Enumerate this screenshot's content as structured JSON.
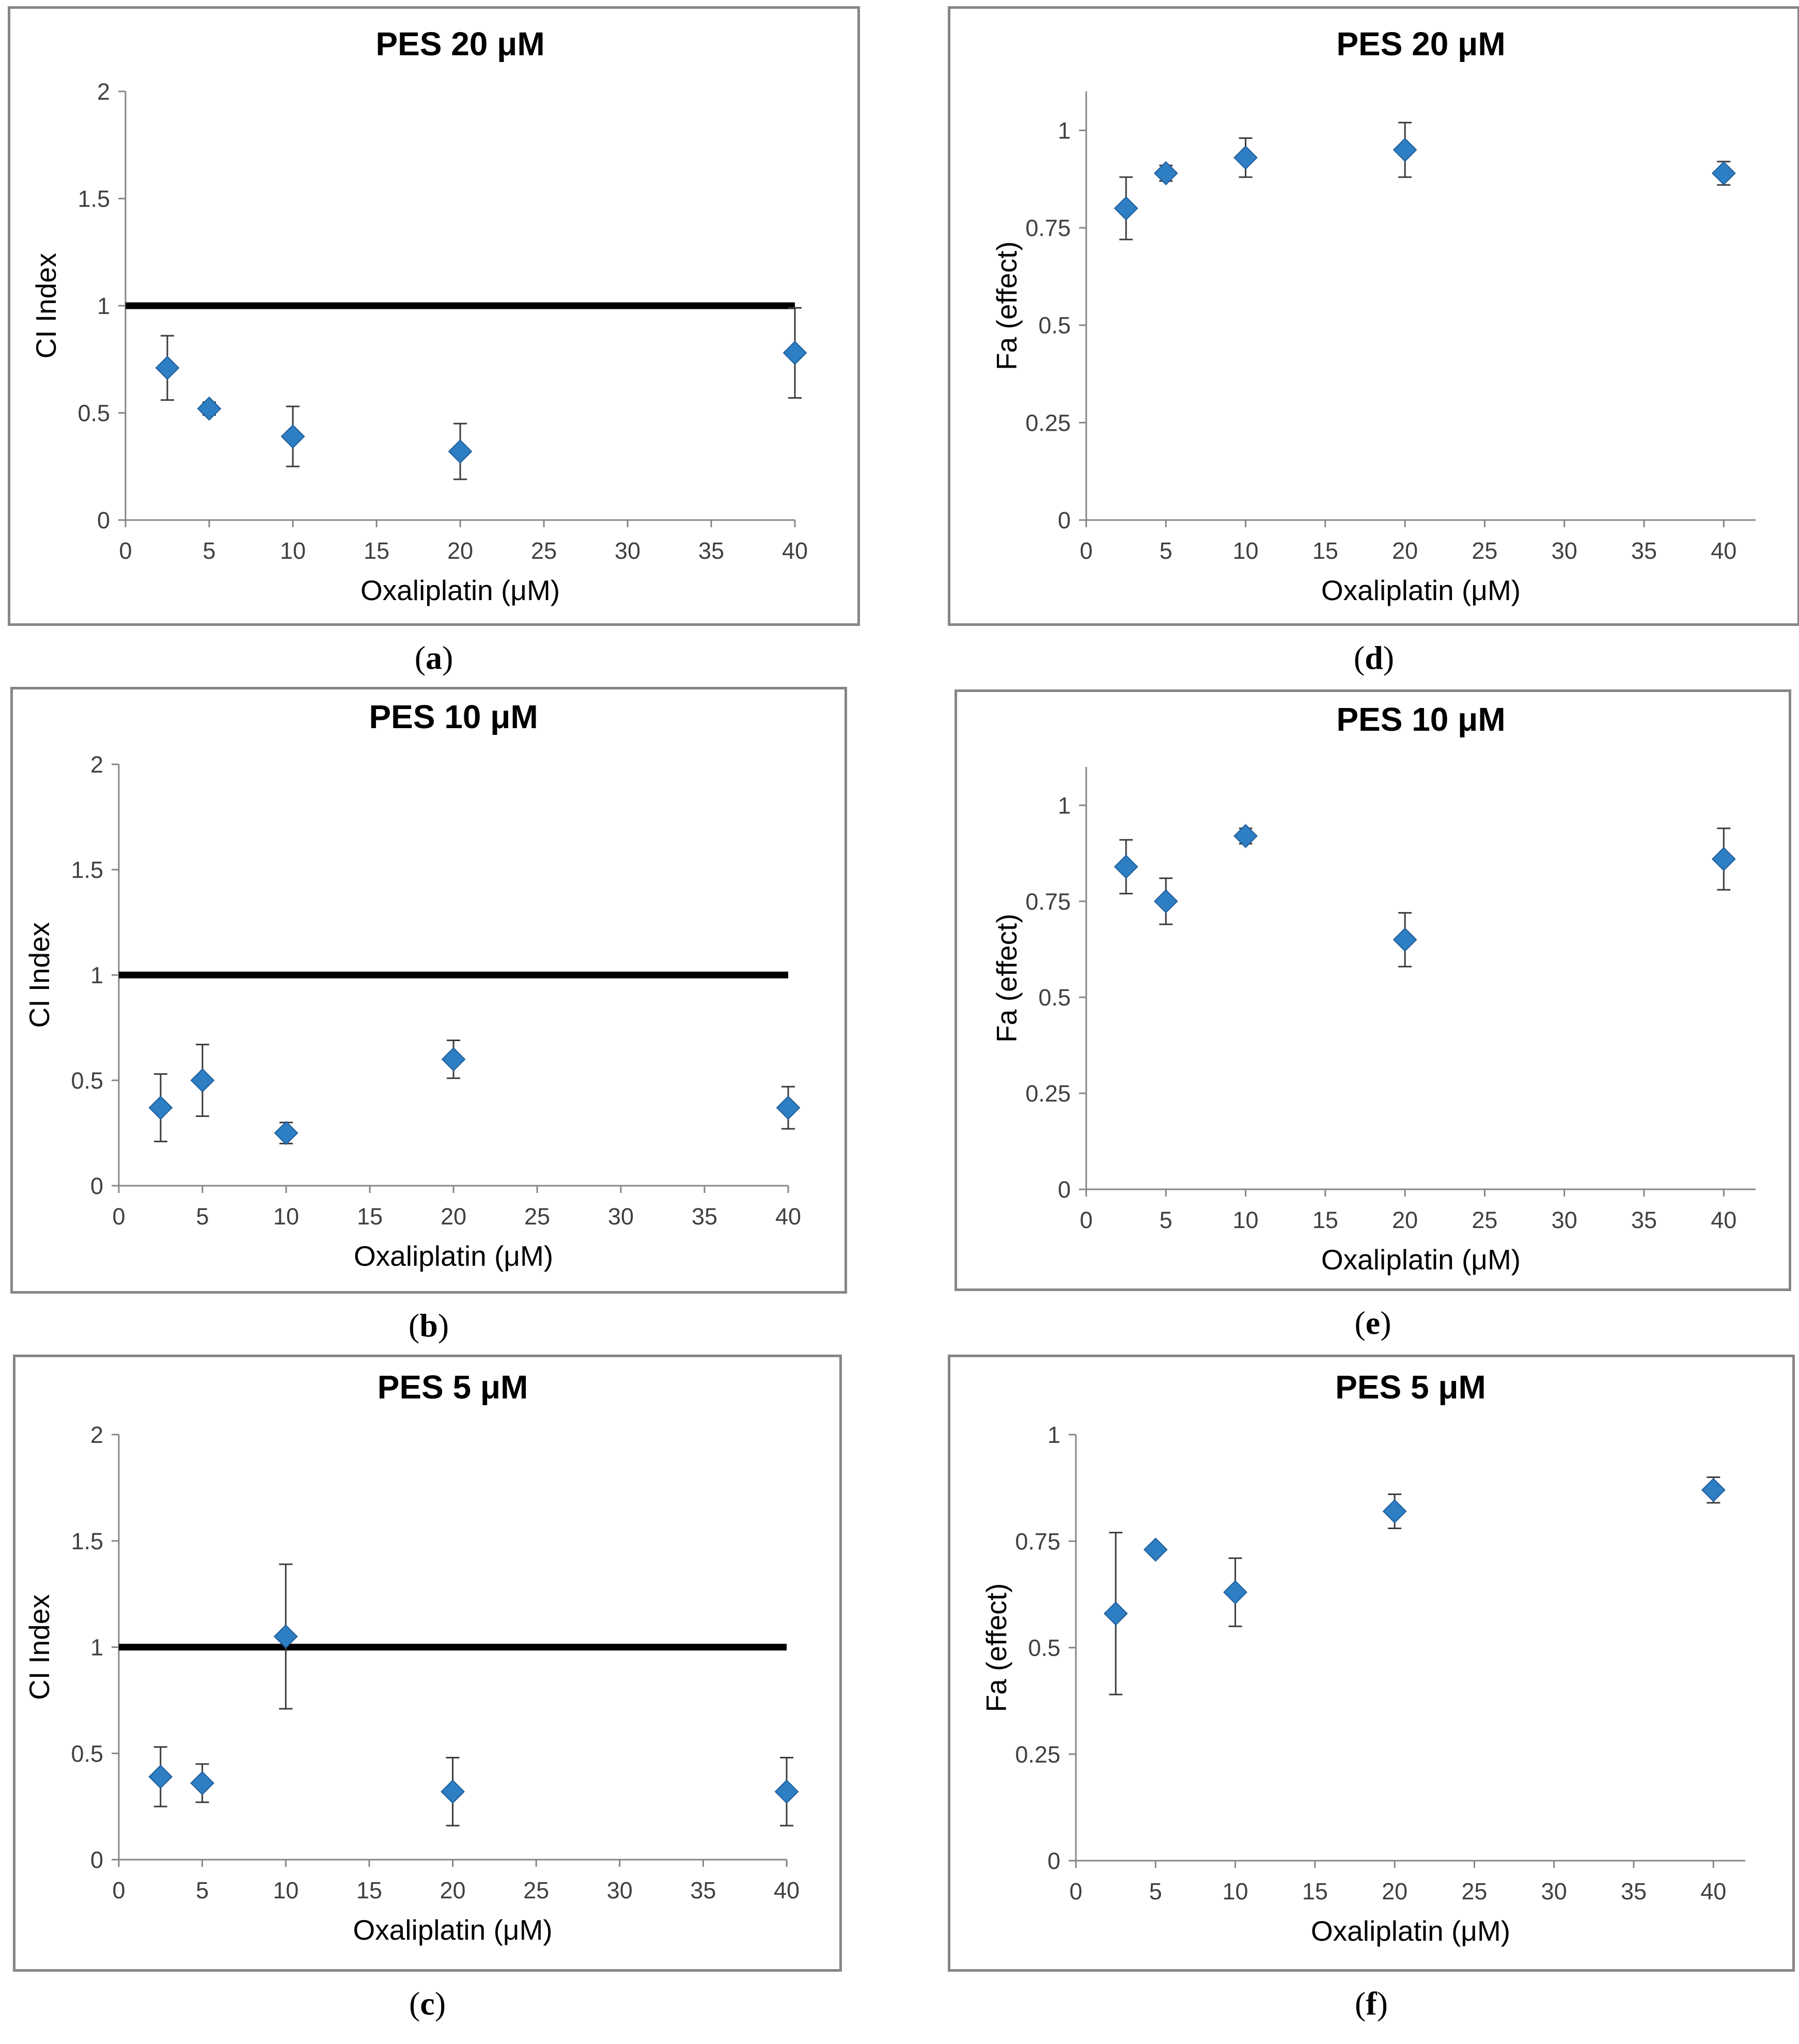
{
  "panels": [
    {
      "id": "a",
      "caption": "a",
      "chart_data": {
        "type": "scatter",
        "title": "PES 20 μM",
        "xlabel": "Oxaliplatin (μM)",
        "ylabel": "CI Index",
        "xlim": [
          0,
          40
        ],
        "ylim": [
          0,
          2
        ],
        "xticks": [
          "0",
          "5",
          "10",
          "15",
          "20",
          "25",
          "30",
          "35",
          "40"
        ],
        "yticks": [
          "0",
          "0.5",
          "1",
          "1.5",
          "2"
        ],
        "reference_line": 1,
        "points": [
          {
            "x": 2.5,
            "y": 0.71,
            "err": 0.15
          },
          {
            "x": 5,
            "y": 0.52,
            "err": 0.03
          },
          {
            "x": 10,
            "y": 0.39,
            "err": 0.14
          },
          {
            "x": 20,
            "y": 0.32,
            "err": 0.13
          },
          {
            "x": 40,
            "y": 0.78,
            "err": 0.21
          }
        ]
      }
    },
    {
      "id": "b",
      "caption": "b",
      "chart_data": {
        "type": "scatter",
        "title": "PES 10 μM",
        "xlabel": "Oxaliplatin (μM)",
        "ylabel": "CI Index",
        "xlim": [
          0,
          40
        ],
        "ylim": [
          0,
          2
        ],
        "xticks": [
          "0",
          "5",
          "10",
          "15",
          "20",
          "25",
          "30",
          "35",
          "40"
        ],
        "yticks": [
          "0",
          "0.5",
          "1",
          "1.5",
          "2"
        ],
        "reference_line": 1,
        "points": [
          {
            "x": 2.5,
            "y": 0.37,
            "err": 0.16
          },
          {
            "x": 5,
            "y": 0.5,
            "err": 0.17
          },
          {
            "x": 10,
            "y": 0.25,
            "err": 0.05
          },
          {
            "x": 20,
            "y": 0.6,
            "err": 0.09
          },
          {
            "x": 40,
            "y": 0.37,
            "err": 0.1
          }
        ]
      }
    },
    {
      "id": "c",
      "caption": "c",
      "chart_data": {
        "type": "scatter",
        "title": "PES 5 μM",
        "xlabel": "Oxaliplatin (μM)",
        "ylabel": "CI Index",
        "xlim": [
          0,
          40
        ],
        "ylim": [
          0,
          2
        ],
        "xticks": [
          "0",
          "5",
          "10",
          "15",
          "20",
          "25",
          "30",
          "35",
          "40"
        ],
        "yticks": [
          "0",
          "0.5",
          "1",
          "1.5",
          "2"
        ],
        "reference_line": 1,
        "points": [
          {
            "x": 2.5,
            "y": 0.39,
            "err": 0.14
          },
          {
            "x": 5,
            "y": 0.36,
            "err": 0.09
          },
          {
            "x": 10,
            "y": 1.05,
            "err": 0.34
          },
          {
            "x": 20,
            "y": 0.32,
            "err": 0.16
          },
          {
            "x": 40,
            "y": 0.32,
            "err": 0.16
          }
        ]
      }
    },
    {
      "id": "d",
      "caption": "d",
      "chart_data": {
        "type": "scatter",
        "title": "PES 20 μM",
        "xlabel": "Oxaliplatin (μM)",
        "ylabel": "Fa (effect)",
        "xlim": [
          0,
          42
        ],
        "ylim": [
          0,
          1.1
        ],
        "xticks": [
          "0",
          "5",
          "10",
          "15",
          "20",
          "25",
          "30",
          "35",
          "40"
        ],
        "yticks": [
          "0",
          "0.25",
          "0.5",
          "0.75",
          "1"
        ],
        "points": [
          {
            "x": 2.5,
            "y": 0.8,
            "err": 0.08
          },
          {
            "x": 5,
            "y": 0.89,
            "err": 0.02
          },
          {
            "x": 10,
            "y": 0.93,
            "err": 0.05
          },
          {
            "x": 20,
            "y": 0.95,
            "err": 0.07
          },
          {
            "x": 40,
            "y": 0.89,
            "err": 0.03
          }
        ]
      }
    },
    {
      "id": "e",
      "caption": "e",
      "chart_data": {
        "type": "scatter",
        "title": "PES 10 μM",
        "xlabel": "Oxaliplatin (μM)",
        "ylabel": "Fa (effect)",
        "xlim": [
          0,
          42
        ],
        "ylim": [
          0,
          1.1
        ],
        "xticks": [
          "0",
          "5",
          "10",
          "15",
          "20",
          "25",
          "30",
          "35",
          "40"
        ],
        "yticks": [
          "0",
          "0.25",
          "0.5",
          "0.75",
          "1"
        ],
        "points": [
          {
            "x": 2.5,
            "y": 0.84,
            "err": 0.07
          },
          {
            "x": 5,
            "y": 0.75,
            "err": 0.06
          },
          {
            "x": 10,
            "y": 0.92,
            "err": 0.02
          },
          {
            "x": 20,
            "y": 0.65,
            "err": 0.07
          },
          {
            "x": 40,
            "y": 0.86,
            "err": 0.08
          }
        ]
      }
    },
    {
      "id": "f",
      "caption": "f",
      "chart_data": {
        "type": "scatter",
        "title": "PES 5 μM",
        "xlabel": "Oxaliplatin (μM)",
        "ylabel": "Fa (effect)",
        "xlim": [
          0,
          42
        ],
        "ylim": [
          0,
          1
        ],
        "xticks": [
          "0",
          "5",
          "10",
          "15",
          "20",
          "25",
          "30",
          "35",
          "40"
        ],
        "yticks": [
          "0",
          "0.25",
          "0.5",
          "0.75",
          "1"
        ],
        "points": [
          {
            "x": 2.5,
            "y": 0.58,
            "err": 0.19
          },
          {
            "x": 5,
            "y": 0.73,
            "err": 0.01
          },
          {
            "x": 10,
            "y": 0.63,
            "err": 0.08
          },
          {
            "x": 20,
            "y": 0.82,
            "err": 0.04
          },
          {
            "x": 40,
            "y": 0.87,
            "err": 0.03
          }
        ]
      }
    }
  ],
  "colors": {
    "marker": "#2E7EC4",
    "marker_edge": "#1F5E99",
    "errorbar": "#3b3b3b",
    "reference_line": "#000000",
    "axis": "#868686",
    "frame": "#868686"
  }
}
